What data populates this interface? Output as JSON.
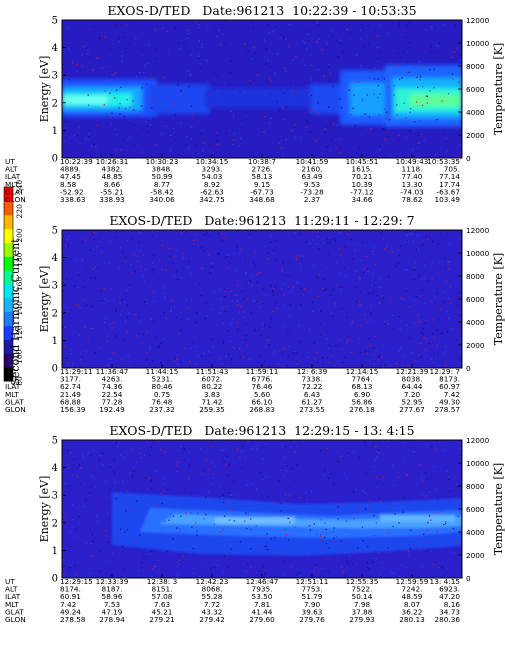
{
  "colorbar": {
    "label": "Second Harmonic Current",
    "ticks": [
      "80",
      "100",
      "120",
      "140",
      "160",
      "180",
      "200",
      "220",
      "240"
    ],
    "colors": [
      "#000000",
      "#2b006b",
      "#1a1aa6",
      "#1e3cff",
      "#1e7cff",
      "#14b4ff",
      "#00e6ff",
      "#00ff96",
      "#00ff00",
      "#9cff00",
      "#ffff00",
      "#ffb400",
      "#ff5a00",
      "#ff0000"
    ]
  },
  "row_labels": [
    "UT",
    "ALT",
    "ILAT",
    "MLT",
    "GLAT",
    "GLON"
  ],
  "chart_data": [
    {
      "type": "heatmap",
      "title": "EXOS-D/TED   Date:961213  10:22:39 - 10:53:35",
      "ylabel": "Energy [eV]",
      "y2label": "Temperature [K]",
      "ylim": [
        0,
        5
      ],
      "y2lim": [
        0,
        12000
      ],
      "yticks": [
        "0",
        "1",
        "2",
        "3",
        "4",
        "5"
      ],
      "y2ticks": [
        "0",
        "2000",
        "4000",
        "6000",
        "8000",
        "10000",
        "12000"
      ],
      "table": [
        [
          "10:22:39",
          "10:26:31",
          "10:30:23",
          "10:34:15",
          "10:38:7",
          "10:41:59",
          "10:45:51",
          "10:49:43",
          "10:53:35"
        ],
        [
          "4889.",
          "4382.",
          "3848.",
          "3293.",
          "2726.",
          "2160.",
          "1615.",
          "1118.",
          "705."
        ],
        [
          "47.45",
          "48.85",
          "50.99",
          "54.03",
          "58.13",
          "63.49",
          "70.21",
          "77.40",
          "77.14"
        ],
        [
          "8.58",
          "8.66",
          "8.77",
          "8.92",
          "9.15",
          "9.53",
          "10.39",
          "13.30",
          "17.74"
        ],
        [
          "-52.92",
          "-55.21",
          "-58.42",
          "-62.63",
          "-67.73",
          "-73.28",
          "-77.12",
          "-74.03",
          "-63.67"
        ],
        [
          "338.63",
          "338.93",
          "340.06",
          "342.75",
          "348.68",
          "2.37",
          "34.66",
          "78.62",
          "103.49"
        ]
      ]
    },
    {
      "type": "heatmap",
      "title": "EXOS-D/TED   Date:961213  11:29:11 - 12:29: 7",
      "ylabel": "Energy [eV]",
      "y2label": "Temperature [K]",
      "ylim": [
        0,
        5
      ],
      "y2lim": [
        0,
        12000
      ],
      "yticks": [
        "0",
        "1",
        "2",
        "3",
        "4",
        "5"
      ],
      "y2ticks": [
        "0",
        "2000",
        "4000",
        "6000",
        "8000",
        "10000",
        "12000"
      ],
      "table": [
        [
          "11:29:11",
          "11:36:47",
          "11:44:15",
          "11:51:43",
          "11:59:11",
          "12: 6:39",
          "12:14:15",
          "12:21:39",
          "12:29: 7"
        ],
        [
          "3177.",
          "4263.",
          "5231.",
          "6072.",
          "6776.",
          "7338.",
          "7764.",
          "8038.",
          "8173."
        ],
        [
          "62.74",
          "74.36",
          "80.46",
          "80.22",
          "76.46",
          "72.22",
          "68.13",
          "64.44",
          "60.97"
        ],
        [
          "21.49",
          "22.54",
          "0.75",
          "3.83",
          "5.60",
          "6.43",
          "6.90",
          "7.20",
          "7.42"
        ],
        [
          "68.88",
          "77.28",
          "76.48",
          "71.42",
          "66.10",
          "61.27",
          "56.86",
          "52.95",
          "49.30"
        ],
        [
          "156.39",
          "192.49",
          "237.32",
          "259.35",
          "268.83",
          "273.55",
          "276.18",
          "277.67",
          "278.57"
        ]
      ]
    },
    {
      "type": "heatmap",
      "title": "EXOS-D/TED   Date:961213  12:29:15 - 13: 4:15",
      "ylabel": "Energy [eV]",
      "y2label": "Temperature [K]",
      "ylim": [
        0,
        5
      ],
      "y2lim": [
        0,
        12000
      ],
      "yticks": [
        "0",
        "1",
        "2",
        "3",
        "4",
        "5"
      ],
      "y2ticks": [
        "0",
        "2000",
        "4000",
        "6000",
        "8000",
        "10000",
        "12000"
      ],
      "table": [
        [
          "12:29:15",
          "12:33:39",
          "12:38: 3",
          "12:42:23",
          "12:46:47",
          "12:51:11",
          "12:55:35",
          "12:59:59",
          "13: 4:15"
        ],
        [
          "8174.",
          "8187.",
          "8151.",
          "8068.",
          "7935.",
          "7753.",
          "7522.",
          "7242.",
          "6923."
        ],
        [
          "60.91",
          "58.96",
          "57.08",
          "55.28",
          "53.50",
          "51.79",
          "50.14",
          "48.59",
          "47.20"
        ],
        [
          "7.42",
          "7.53",
          "7.63",
          "7.72",
          "7.81",
          "7.90",
          "7.98",
          "8.07",
          "8.16"
        ],
        [
          "49.24",
          "47.19",
          "45.21",
          "43.32",
          "41.44",
          "39.63",
          "37.88",
          "36.22",
          "34.73"
        ],
        [
          "278.58",
          "278.94",
          "279.21",
          "279.42",
          "279.60",
          "279.76",
          "279.93",
          "280.13",
          "280.36"
        ]
      ]
    }
  ]
}
